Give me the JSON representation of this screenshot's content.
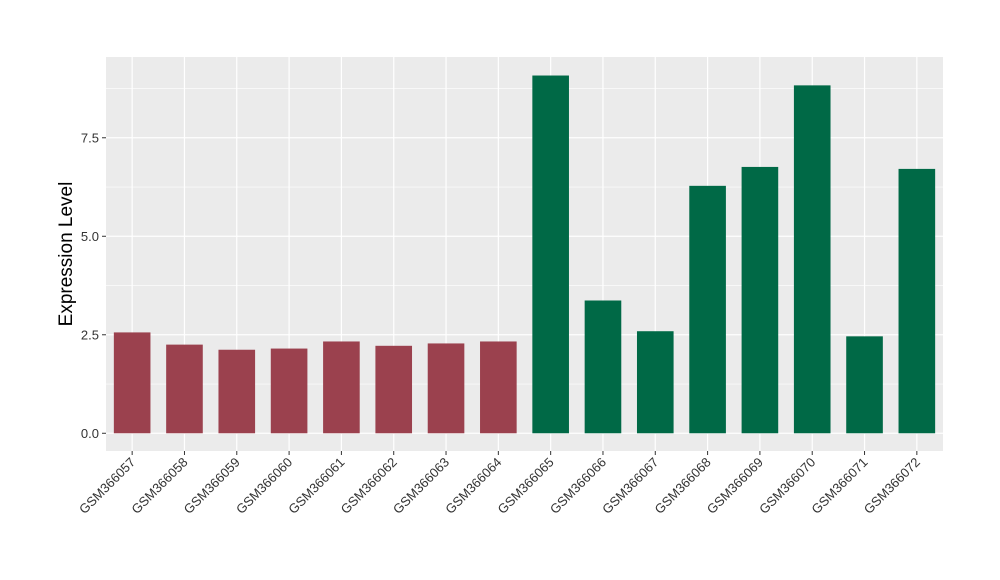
{
  "chart_data": {
    "type": "bar",
    "categories": [
      "GSM366057",
      "GSM366058",
      "GSM366059",
      "GSM366060",
      "GSM366061",
      "GSM366062",
      "GSM366063",
      "GSM366064",
      "GSM366065",
      "GSM366066",
      "GSM366067",
      "GSM366068",
      "GSM366069",
      "GSM366070",
      "GSM366071",
      "GSM366072"
    ],
    "values": [
      2.56,
      2.25,
      2.12,
      2.15,
      2.33,
      2.22,
      2.28,
      2.33,
      9.08,
      3.37,
      2.59,
      6.28,
      6.76,
      8.83,
      2.46,
      6.71
    ],
    "group": [
      0,
      0,
      0,
      0,
      0,
      0,
      0,
      0,
      1,
      1,
      1,
      1,
      1,
      1,
      1,
      1
    ],
    "group_colors": [
      "#9B414E",
      "#006946"
    ],
    "title": "",
    "xlabel": "",
    "ylabel": "Expression Level",
    "ylim": [
      -0.45,
      9.55
    ],
    "yticks": [
      0.0,
      2.5,
      5.0,
      7.5
    ],
    "ytick_labels": [
      "0.0",
      "2.5",
      "5.0",
      "7.5"
    ],
    "grid": true,
    "legend": "none",
    "panel_background": "#EBEBEB",
    "grid_color": "#FFFFFF"
  }
}
